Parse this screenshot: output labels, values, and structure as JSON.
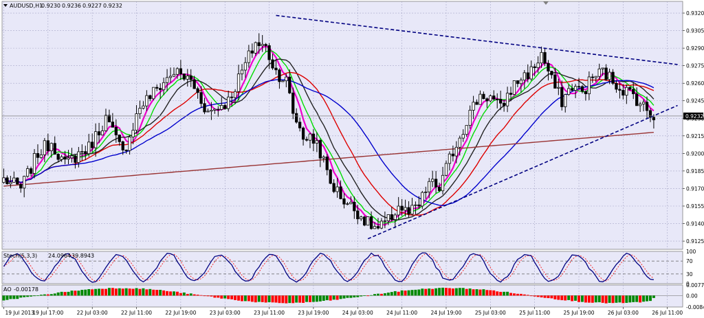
{
  "chart_data": [
    {
      "type": "candlestick",
      "symbol_header": "AUDUSD,H1",
      "ohlc_header": [
        "0.9230",
        "0.9236",
        "0.9227",
        "0.9232"
      ],
      "current_price": "0.9232",
      "ylim": [
        0.9118,
        0.933
      ],
      "y_ticks": [
        "0.9320",
        "0.9305",
        "0.9290",
        "0.9275",
        "0.9260",
        "0.9245",
        "0.9230",
        "0.9215",
        "0.9200",
        "0.9185",
        "0.9170",
        "0.9155",
        "0.9140",
        "0.9125"
      ],
      "x_ticks": [
        "19 Jul 2013",
        "19 Jul 17:00",
        "22 Jul 03:00",
        "22 Jul 11:00",
        "22 Jul 19:00",
        "23 Jul 03:00",
        "23 Jul 11:00",
        "23 Jul 19:00",
        "24 Jul 03:00",
        "24 Jul 11:00",
        "24 Jul 19:00",
        "25 Jul 03:00",
        "25 Jul 11:00",
        "25 Jul 19:00",
        "26 Jul 03:00",
        "26 Jul 11:00"
      ],
      "close_anchors": [
        [
          0,
          0.9178
        ],
        [
          5,
          0.917
        ],
        [
          10,
          0.92
        ],
        [
          14,
          0.921
        ],
        [
          18,
          0.919
        ],
        [
          22,
          0.92
        ],
        [
          25,
          0.9205
        ],
        [
          30,
          0.923
        ],
        [
          35,
          0.92
        ],
        [
          40,
          0.924
        ],
        [
          45,
          0.9255
        ],
        [
          50,
          0.927
        ],
        [
          55,
          0.9262
        ],
        [
          60,
          0.9235
        ],
        [
          63,
          0.924
        ],
        [
          66,
          0.9245
        ],
        [
          70,
          0.927
        ],
        [
          74,
          0.9295
        ],
        [
          77,
          0.929
        ],
        [
          80,
          0.927
        ],
        [
          83,
          0.9262
        ],
        [
          85,
          0.9235
        ],
        [
          88,
          0.9215
        ],
        [
          92,
          0.921
        ],
        [
          96,
          0.9175
        ],
        [
          100,
          0.916
        ],
        [
          104,
          0.915
        ],
        [
          107,
          0.914
        ],
        [
          110,
          0.9135
        ],
        [
          113,
          0.9142
        ],
        [
          116,
          0.9155
        ],
        [
          119,
          0.9148
        ],
        [
          122,
          0.9155
        ],
        [
          125,
          0.9175
        ],
        [
          128,
          0.917
        ],
        [
          131,
          0.9195
        ],
        [
          134,
          0.9215
        ],
        [
          137,
          0.9235
        ],
        [
          140,
          0.925
        ],
        [
          143,
          0.9248
        ],
        [
          146,
          0.9238
        ],
        [
          149,
          0.9255
        ],
        [
          152,
          0.9265
        ],
        [
          155,
          0.927
        ],
        [
          158,
          0.9285
        ],
        [
          161,
          0.9262
        ],
        [
          164,
          0.9245
        ],
        [
          167,
          0.9258
        ],
        [
          170,
          0.9252
        ],
        [
          173,
          0.9265
        ],
        [
          176,
          0.927
        ],
        [
          179,
          0.9262
        ],
        [
          182,
          0.9255
        ],
        [
          185,
          0.925
        ],
        [
          188,
          0.924
        ],
        [
          191,
          0.9232
        ]
      ],
      "overlays": {
        "trendlines": [
          {
            "from": [
              80,
              0.9318
            ],
            "to": [
              198,
              0.9276
            ]
          },
          {
            "from": [
              107,
              0.9127
            ],
            "to": [
              198,
              0.9241
            ]
          }
        ],
        "moving_averages": [
          {
            "color": "#ee00cc",
            "period": 5
          },
          {
            "color": "#00dd00",
            "period": 8
          },
          {
            "color": "#222222",
            "period": 13
          },
          {
            "color": "#dd0000",
            "period": 21
          },
          {
            "color": "#0000cc",
            "period": 34
          },
          {
            "color": "#993333",
            "period": 200
          }
        ]
      }
    },
    {
      "type": "line",
      "indicator": "Stoch(5,3,3)",
      "values_header": [
        "24.0964",
        "39.8943"
      ],
      "levels": [
        70,
        30
      ],
      "y_ticks": [
        "100",
        "70",
        "30",
        "0"
      ],
      "ylim": [
        0,
        100
      ]
    },
    {
      "type": "bar",
      "indicator": "AO",
      "values_header": [
        "-0.00178"
      ],
      "y_ticks": [
        "0.00773",
        "0.00",
        "-0.00841"
      ],
      "ylim": [
        -0.00841,
        0.00773
      ],
      "colors": {
        "up": "#008800",
        "down": "#ff0000"
      }
    }
  ],
  "colors": {
    "background": "#ffffff",
    "plot_background": "#e8e8f8",
    "grid": "#a8a8c8",
    "bull": "#ffffff",
    "bear": "#000000",
    "price_line": "#808080"
  }
}
